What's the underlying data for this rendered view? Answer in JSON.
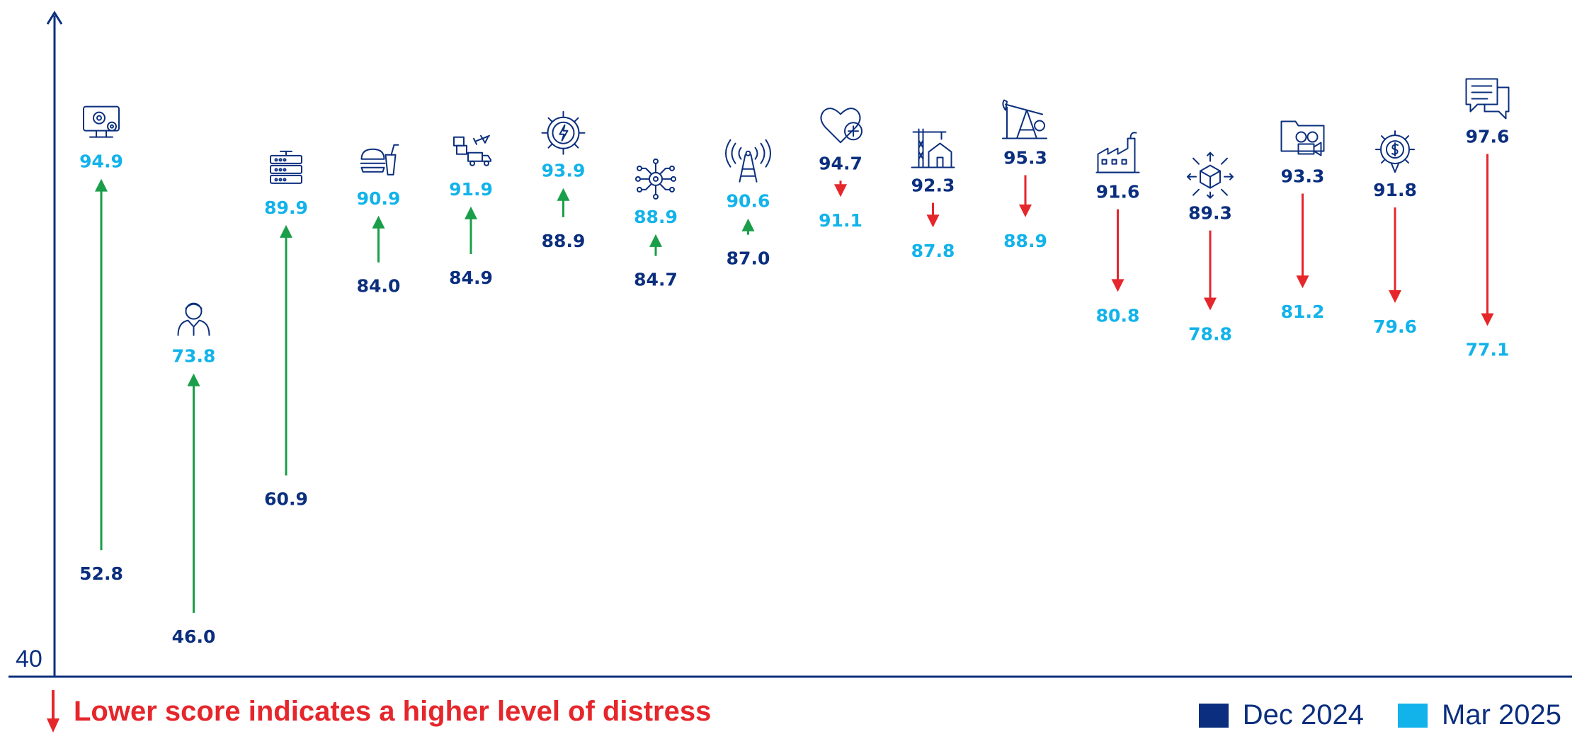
{
  "chart_data": {
    "type": "dumbbell",
    "title": "",
    "xlabel": "",
    "ylabel": "",
    "y_tick_label": "40",
    "ylim": [
      40,
      108
    ],
    "categories": [
      {
        "icon": "computer-gear-icon",
        "dec": 52.8,
        "mar": 94.9
      },
      {
        "icon": "person-icon",
        "dec": 46.0,
        "mar": 73.8
      },
      {
        "icon": "server-rack-icon",
        "dec": 60.9,
        "mar": 89.9
      },
      {
        "icon": "fast-food-icon",
        "dec": 84.0,
        "mar": 90.9
      },
      {
        "icon": "logistics-icon",
        "dec": 84.9,
        "mar": 91.9
      },
      {
        "icon": "energy-gear-icon",
        "dec": 88.9,
        "mar": 93.9
      },
      {
        "icon": "circuit-network-icon",
        "dec": 84.7,
        "mar": 88.9
      },
      {
        "icon": "signal-tower-icon",
        "dec": 87.0,
        "mar": 90.6
      },
      {
        "icon": "heart-plus-icon",
        "dec": 94.7,
        "mar": 91.1
      },
      {
        "icon": "crane-house-icon",
        "dec": 92.3,
        "mar": 87.8
      },
      {
        "icon": "oil-pump-icon",
        "dec": 95.3,
        "mar": 88.9
      },
      {
        "icon": "factory-icon",
        "dec": 91.6,
        "mar": 80.8
      },
      {
        "icon": "package-distribution-icon",
        "dec": 89.3,
        "mar": 78.8
      },
      {
        "icon": "film-camera-icon",
        "dec": 93.3,
        "mar": 81.2
      },
      {
        "icon": "dollar-gear-icon",
        "dec": 91.8,
        "mar": 79.6
      },
      {
        "icon": "speech-bubbles-icon",
        "dec": 97.6,
        "mar": 77.1
      }
    ],
    "series": [
      {
        "name": "Dec 2024",
        "color": "#0b2f7e"
      },
      {
        "name": "Mar 2025",
        "color": "#12b3ea"
      }
    ],
    "increase_color": "#1a9e49",
    "decrease_color": "#e5262b",
    "axis_color": "#0b2f7e"
  },
  "note": {
    "text": "Lower score indicates a higher level of distress",
    "color": "#e5262b"
  },
  "legend": {
    "items": [
      {
        "label": "Dec 2024",
        "color": "#0b2f7e"
      },
      {
        "label": "Mar 2025",
        "color": "#12b3ea"
      }
    ]
  }
}
